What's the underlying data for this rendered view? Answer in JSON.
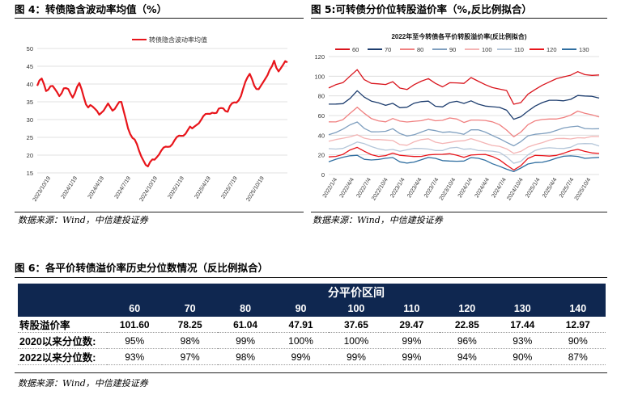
{
  "figures": {
    "fig4": {
      "title": "图 4：转债隐含波动率均值（%）",
      "source": "数据来源：Wind，中信建投证券"
    },
    "fig5": {
      "title": "图 5:可转债分价位转股溢价率（%,反比例拟合）",
      "source": "数据来源：Wind，中信建投证券"
    },
    "fig6": {
      "title": "图 6：各平价转债溢价率历史分位数情况（反比例拟合）",
      "source": "数据来源：Wind，中信建投证券"
    }
  },
  "colors": {
    "fig4_line": "#e8151b",
    "header_bg": "#0f2750",
    "series": [
      "#d9141c",
      "#1d3d6e",
      "#f08080",
      "#7f9fbf",
      "#f4b4b4",
      "#b4c6d9",
      "#e8151b",
      "#2f6ea0"
    ]
  },
  "chart_data": [
    {
      "id": "fig4",
      "type": "line",
      "title": "",
      "legend": [
        "转债隐含波动率均值"
      ],
      "legend_position": "top-center",
      "xlabel": "",
      "ylabel": "",
      "ylim": [
        15,
        50
      ],
      "yticks": [
        15,
        20,
        25,
        30,
        35,
        40,
        45,
        50
      ],
      "xticks": [
        "2023/10/19",
        "2024/1/19",
        "2024/4/19",
        "2024/7/19",
        "2024/10/19",
        "2025/1/19",
        "2025/4/19",
        "2025/7/19",
        "2025/10/19"
      ],
      "series": [
        {
          "name": "转债隐含波动率均值",
          "values": [
            39.5,
            40.5,
            41,
            40,
            38.5,
            39,
            39.5,
            39,
            38,
            37.5,
            37,
            38,
            39,
            38.5,
            38,
            37,
            36.5,
            38,
            39.5,
            40,
            38,
            36,
            34.5,
            34,
            34.5,
            33.5,
            32.5,
            32,
            31.5,
            32.5,
            33,
            33.5,
            34,
            33,
            32.5,
            33.5,
            34.5,
            35,
            34.5,
            32,
            30,
            28,
            26.5,
            25,
            24,
            22.5,
            21,
            20,
            19,
            17.5,
            16.5,
            17.5,
            18.5,
            19,
            20,
            20.5,
            21,
            21.5,
            22,
            22.5,
            23,
            23.5,
            24,
            24.5,
            25,
            25.5,
            26,
            26.5,
            27,
            27.5,
            27,
            28,
            29,
            29.5,
            30,
            30.5,
            31,
            31.5,
            32,
            32.5,
            32,
            31.5,
            32.5,
            33,
            33.5,
            33,
            32.5,
            33.5,
            34,
            34.5,
            35,
            36,
            37,
            38.5,
            40,
            41.5,
            43,
            42,
            40,
            38.5,
            38,
            39,
            40.5,
            42,
            43,
            44,
            44.5,
            46,
            44.5,
            44,
            45,
            45.5,
            46,
            45.5
          ]
        }
      ]
    },
    {
      "id": "fig5",
      "type": "line",
      "title": "2022年至今转债各平价转股溢价率(反比例拟合)",
      "legend": [
        "60",
        "70",
        "80",
        "90",
        "100",
        "110",
        "120",
        "130"
      ],
      "legend_position": "top-center",
      "xlabel": "",
      "ylabel": "",
      "ylim": [
        0,
        120
      ],
      "yticks": [
        0,
        20,
        40,
        60,
        80,
        100,
        120
      ],
      "xticks": [
        "2022/1/4",
        "2022/4/4",
        "2022/7/4",
        "2022/10/4",
        "2023/1/4",
        "2023/4/4",
        "2023/7/4",
        "2023/10/4",
        "2024/1/4",
        "2024/4/4",
        "2024/7/4",
        "2024/10/4",
        "2025/1/4",
        "2025/4/4",
        "2025/7/4",
        "2025/10/4"
      ],
      "series": [
        {
          "name": "60",
          "values": [
            88,
            90,
            92,
            100,
            108,
            98,
            93,
            91,
            90,
            94,
            89,
            88,
            92,
            94,
            96,
            92,
            90,
            95,
            94,
            92,
            97,
            94,
            92,
            90,
            88,
            85,
            70,
            72,
            82,
            88,
            92,
            94,
            96,
            98,
            101,
            106,
            103,
            101,
            100
          ]
        },
        {
          "name": "70",
          "values": [
            70,
            71,
            73,
            79,
            86,
            78,
            73,
            72,
            71,
            74,
            69,
            68,
            71,
            73,
            75,
            71,
            70,
            73,
            73,
            71,
            75,
            73,
            71,
            69,
            67,
            64,
            56,
            60,
            66,
            70,
            72,
            74,
            75,
            76,
            78,
            81,
            79,
            78,
            77
          ]
        },
        {
          "name": "80",
          "values": [
            54,
            55,
            57,
            62,
            67,
            61,
            57,
            56,
            55,
            57,
            53,
            52,
            54,
            56,
            58,
            55,
            54,
            56,
            56,
            54,
            57,
            56,
            54,
            52,
            50,
            46,
            40,
            44,
            50,
            53,
            55,
            57,
            58,
            59,
            60,
            63,
            61,
            61,
            60
          ]
        },
        {
          "name": "90",
          "values": [
            42,
            43,
            45,
            49,
            53,
            48,
            45,
            44,
            43,
            45,
            41,
            40,
            42,
            44,
            45,
            43,
            42,
            44,
            44,
            42,
            45,
            44,
            42,
            40,
            38,
            34,
            29,
            32,
            38,
            41,
            43,
            44,
            45,
            46,
            47,
            49,
            48,
            48,
            47
          ]
        },
        {
          "name": "100",
          "values": [
            33,
            34,
            36,
            39,
            42,
            38,
            35,
            34,
            34,
            35,
            32,
            31,
            33,
            34,
            35,
            33,
            33,
            34,
            34,
            33,
            35,
            34,
            33,
            31,
            29,
            25,
            20,
            23,
            29,
            32,
            33,
            34,
            35,
            36,
            37,
            39,
            38,
            38,
            37
          ]
        },
        {
          "name": "110",
          "values": [
            25,
            26,
            28,
            31,
            33,
            30,
            27,
            26,
            26,
            27,
            24,
            24,
            25,
            26,
            27,
            26,
            25,
            26,
            26,
            25,
            27,
            26,
            25,
            23,
            21,
            17,
            12,
            15,
            21,
            24,
            25,
            26,
            27,
            28,
            29,
            31,
            30,
            30,
            29
          ]
        },
        {
          "name": "120",
          "values": [
            19,
            20,
            21,
            24,
            26,
            23,
            21,
            20,
            20,
            21,
            18,
            18,
            19,
            20,
            21,
            20,
            19,
            20,
            20,
            19,
            21,
            20,
            19,
            17,
            15,
            11,
            6,
            9,
            15,
            18,
            19,
            20,
            21,
            22,
            23,
            24,
            23,
            23,
            23
          ]
        },
        {
          "name": "130",
          "values": [
            14,
            15,
            16,
            18,
            20,
            17,
            16,
            15,
            15,
            16,
            13,
            13,
            14,
            15,
            16,
            15,
            14,
            15,
            15,
            14,
            16,
            15,
            14,
            12,
            10,
            6,
            2,
            5,
            10,
            13,
            14,
            15,
            16,
            17,
            18,
            19,
            18,
            18,
            17
          ]
        }
      ]
    },
    {
      "id": "fig6",
      "type": "table",
      "group_header": "分平价区间",
      "columns": [
        "60",
        "70",
        "80",
        "90",
        "100",
        "110",
        "120",
        "130",
        "140"
      ],
      "rows": [
        {
          "label": "转股溢价率",
          "values": [
            "101.60",
            "78.25",
            "61.04",
            "47.91",
            "37.65",
            "29.47",
            "22.85",
            "17.44",
            "12.97"
          ]
        },
        {
          "label": "2020以来分位数:",
          "values": [
            "95%",
            "98%",
            "99%",
            "100%",
            "100%",
            "99%",
            "96%",
            "93%",
            "90%"
          ]
        },
        {
          "label": "2022以来分位数:",
          "values": [
            "93%",
            "97%",
            "98%",
            "99%",
            "99%",
            "99%",
            "94%",
            "90%",
            "87%"
          ]
        }
      ]
    }
  ]
}
